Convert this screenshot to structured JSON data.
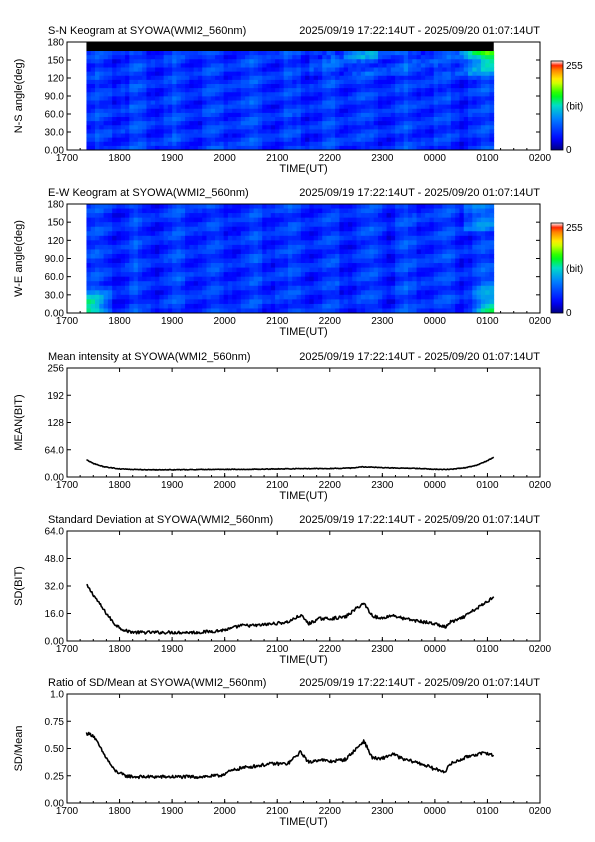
{
  "chart_data": [
    {
      "type": "heatmap",
      "title": "S-N Keogram at SYOWA(WMI2_560nm)",
      "time_range": "2025/09/19 17:22:14UT - 2025/09/20 01:07:14UT",
      "xlabel": "TIME(UT)",
      "ylabel": "N-S angle(deg)",
      "xticks": [
        "1700",
        "1800",
        "1900",
        "2000",
        "2100",
        "2200",
        "2300",
        "0000",
        "0100",
        "0200"
      ],
      "yticks": [
        "0.00",
        "30.0",
        "60.0",
        "90.0",
        "120",
        "150",
        "180"
      ],
      "xlim": [
        17.0,
        26.0
      ],
      "ylim": [
        0,
        180
      ],
      "data_x": [
        17.37,
        25.12
      ],
      "no_data_above_deg": 165,
      "colorbar": {
        "min": "0",
        "max": "255",
        "unit": "(bit)"
      },
      "colors": [
        "#000080",
        "#0000ff",
        "#0080ff",
        "#00c0ff",
        "#00ff80",
        "#00ff00",
        "#ffff00",
        "#ff8000",
        "#ff0000",
        "#ffffff"
      ]
    },
    {
      "type": "heatmap",
      "title": "E-W Keogram at SYOWA(WMI2_560nm)",
      "time_range": "2025/09/19 17:22:14UT - 2025/09/20 01:07:14UT",
      "xlabel": "TIME(UT)",
      "ylabel": "W-E angle(deg)",
      "xticks": [
        "1700",
        "1800",
        "1900",
        "2000",
        "2100",
        "2200",
        "2300",
        "0000",
        "0100",
        "0200"
      ],
      "yticks": [
        "0.00",
        "30.0",
        "60.0",
        "90.0",
        "120",
        "150",
        "180"
      ],
      "xlim": [
        17.0,
        26.0
      ],
      "ylim": [
        0,
        180
      ],
      "data_x": [
        17.37,
        25.12
      ],
      "colorbar": {
        "min": "0",
        "max": "255",
        "unit": "(bit)"
      }
    },
    {
      "type": "line",
      "title": "Mean intensity at SYOWA(WMI2_560nm)",
      "time_range": "2025/09/19 17:22:14UT - 2025/09/20 01:07:14UT",
      "xlabel": "TIME(UT)",
      "ylabel": "MEAN(BIT)",
      "xticks": [
        "1700",
        "1800",
        "1900",
        "2000",
        "2100",
        "2200",
        "2300",
        "0000",
        "0100",
        "0200"
      ],
      "yticks": [
        "0.00",
        "64.0",
        "128",
        "192",
        "256"
      ],
      "xlim": [
        17.0,
        26.0
      ],
      "ylim": [
        0,
        256
      ],
      "noise": 0.8,
      "x": [
        17.37,
        17.5,
        17.7,
        18.0,
        18.5,
        19.0,
        19.5,
        20.0,
        20.5,
        21.0,
        21.5,
        22.0,
        22.4,
        22.6,
        22.8,
        23.0,
        23.3,
        23.7,
        24.0,
        24.3,
        24.6,
        24.8,
        25.0,
        25.12
      ],
      "values": [
        40,
        32,
        24,
        19,
        17,
        17,
        17.5,
        18,
        18,
        19,
        19.5,
        20,
        21,
        24,
        23,
        22,
        21,
        20,
        18,
        18,
        22,
        28,
        38,
        47
      ]
    },
    {
      "type": "line",
      "title": "Standard Deviation at SYOWA(WMI2_560nm)",
      "time_range": "2025/09/19 17:22:14UT - 2025/09/20 01:07:14UT",
      "xlabel": "TIME(UT)",
      "ylabel": "SD(BIT)",
      "xticks": [
        "1700",
        "1800",
        "1900",
        "2000",
        "2100",
        "2200",
        "2300",
        "0000",
        "0100",
        "0200"
      ],
      "yticks": [
        "0.00",
        "16.0",
        "32.0",
        "48.0",
        "64.0"
      ],
      "xlim": [
        17.0,
        26.0
      ],
      "ylim": [
        0,
        64
      ],
      "noise": 0.9,
      "x": [
        17.37,
        17.5,
        17.7,
        17.9,
        18.1,
        18.3,
        18.6,
        19.0,
        19.5,
        19.9,
        20.1,
        20.3,
        20.6,
        20.9,
        21.2,
        21.45,
        21.6,
        21.8,
        22.0,
        22.3,
        22.55,
        22.65,
        22.8,
        22.95,
        23.2,
        23.4,
        23.6,
        23.8,
        24.0,
        24.2,
        24.3,
        24.5,
        24.7,
        25.0,
        25.12
      ],
      "values": [
        32.5,
        27,
        18,
        10,
        6,
        5,
        5,
        5,
        5,
        6,
        7,
        9,
        9,
        10,
        11,
        15,
        10,
        13,
        13,
        14,
        20,
        22,
        15,
        13,
        15,
        13,
        12,
        11,
        10,
        8,
        11,
        13,
        17,
        23,
        26
      ]
    },
    {
      "type": "line",
      "title": "Ratio of SD/Mean at SYOWA(WMI2_560nm)",
      "time_range": "2025/09/19 17:22:14UT - 2025/09/20 01:07:14UT",
      "xlabel": "TIME(UT)",
      "ylabel": "SD/Mean",
      "xticks": [
        "1700",
        "1800",
        "1900",
        "2000",
        "2100",
        "2200",
        "2300",
        "0000",
        "0100",
        "0200"
      ],
      "yticks": [
        "0.00",
        "0.25",
        "0.50",
        "0.75",
        "1.0"
      ],
      "xlim": [
        17.0,
        26.0
      ],
      "ylim": [
        0,
        1.0
      ],
      "noise": 0.015,
      "x": [
        17.37,
        17.5,
        17.7,
        17.9,
        18.1,
        18.3,
        18.6,
        19.0,
        19.5,
        19.9,
        20.1,
        20.3,
        20.6,
        20.9,
        21.2,
        21.45,
        21.6,
        21.8,
        22.0,
        22.3,
        22.55,
        22.65,
        22.8,
        22.95,
        23.2,
        23.4,
        23.6,
        23.8,
        24.0,
        24.2,
        24.3,
        24.5,
        24.7,
        25.0,
        25.12
      ],
      "values": [
        0.64,
        0.62,
        0.45,
        0.3,
        0.25,
        0.24,
        0.24,
        0.24,
        0.24,
        0.25,
        0.29,
        0.32,
        0.34,
        0.36,
        0.36,
        0.47,
        0.37,
        0.4,
        0.38,
        0.4,
        0.52,
        0.57,
        0.42,
        0.4,
        0.45,
        0.4,
        0.38,
        0.35,
        0.31,
        0.29,
        0.36,
        0.4,
        0.44,
        0.46,
        0.43
      ]
    }
  ]
}
